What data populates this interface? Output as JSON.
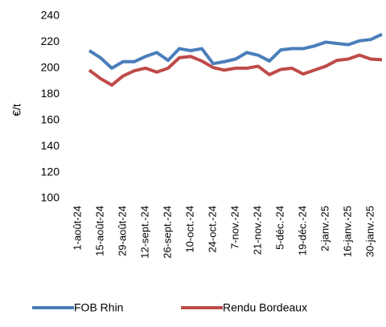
{
  "chart_data": {
    "type": "line",
    "y_label": "€/t",
    "categories": [
      "1-août-24",
      null,
      "15-août-24",
      null,
      "29-août-24",
      null,
      "12-sept.-24",
      null,
      "26-sept.-24",
      null,
      "10-oct.-24",
      null,
      "24-oct.-24",
      null,
      "7-nov.-24",
      null,
      "21-nov.-24",
      null,
      "5-déc.-24",
      null,
      "19-déc.-24",
      null,
      "2-janv.-25",
      null,
      "16-janv.-25",
      null,
      "30-janv.-25",
      null
    ],
    "series": [
      {
        "name": "FOB Rhin",
        "color": "#4a7ebb",
        "values": [
          null,
          213.5,
          208,
          200,
          205,
          205,
          209,
          212,
          206,
          215,
          213.5,
          215,
          203.5,
          205,
          207,
          212,
          210,
          205.5,
          214,
          215,
          215,
          217,
          220,
          219,
          218,
          221,
          222,
          226
        ]
      },
      {
        "name": "Rendu Bordeaux",
        "color": "#be4b48",
        "values": [
          null,
          198.5,
          192,
          187,
          194,
          198,
          200,
          197,
          200,
          208,
          209,
          205.5,
          200.5,
          198.5,
          200,
          200,
          201.5,
          195,
          199,
          200,
          195.5,
          198.5,
          201.5,
          206,
          207,
          210,
          207,
          206.5
        ]
      }
    ],
    "ylim": [
      100,
      240
    ],
    "yticks": [
      100,
      120,
      140,
      160,
      180,
      200,
      220,
      240
    ],
    "legend": "bottom",
    "grid": false
  }
}
